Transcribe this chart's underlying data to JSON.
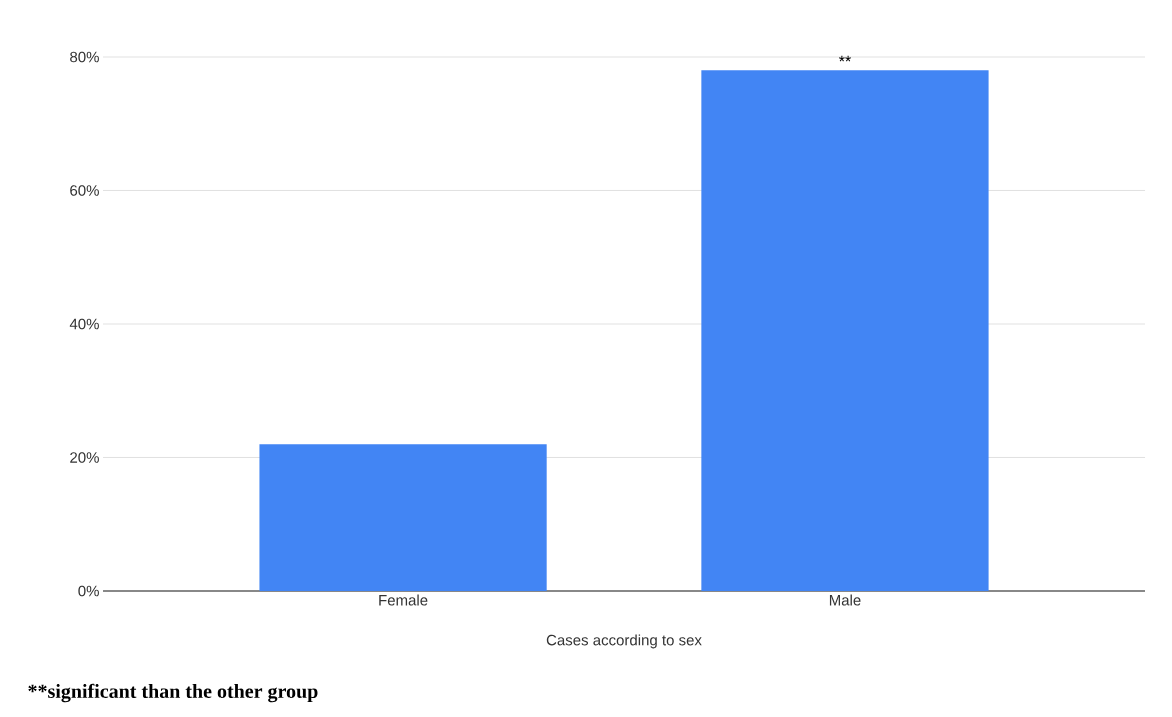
{
  "chart_data": {
    "type": "bar",
    "xlabel": "Cases according to sex",
    "categories": [
      "Female",
      "Male"
    ],
    "values": [
      22,
      78
    ],
    "color": "#4285f4",
    "ylim": [
      0,
      80
    ],
    "yticks": [
      {
        "value": 0,
        "label": "0%"
      },
      {
        "value": 20,
        "label": "20%"
      },
      {
        "value": 40,
        "label": "40%"
      },
      {
        "value": 60,
        "label": "60%"
      },
      {
        "value": 80,
        "label": "80%"
      }
    ],
    "grid": "y",
    "annotations": [
      {
        "text": "**",
        "x": "Male",
        "y": 78
      },
      "**significant than the other group"
    ]
  }
}
